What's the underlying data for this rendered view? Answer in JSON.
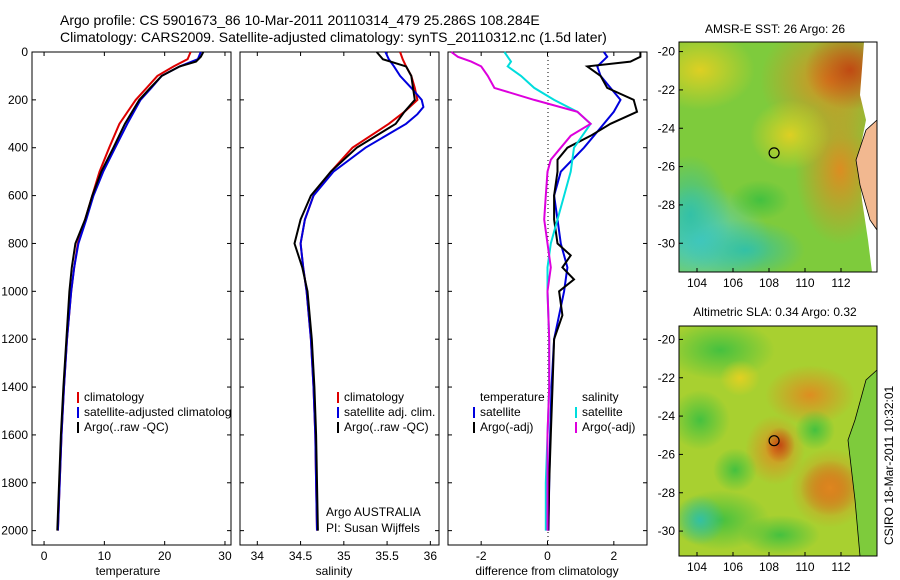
{
  "header": {
    "line1": "Argo profile: CS 5901673_86 10-Mar-2011 20110314_479 25.286S 108.284E",
    "line2": "Climatology: CARS2009. Satellite-adjusted climatology: synTS_20110312.nc (1.5d later)"
  },
  "side_stamp": "CSIRO 18-Mar-2011 10:32:01",
  "colors": {
    "climatology": "#dd0000",
    "satellite": "#0000dd",
    "argo": "#000000",
    "salinity_sat": "#00dddd",
    "salinity_argo": "#dd00dd"
  },
  "chart_data": [
    {
      "type": "line",
      "id": "temperature",
      "xlabel": "temperature",
      "ylabel": "",
      "xlim": [
        -2,
        31
      ],
      "ylim": [
        2060,
        0
      ],
      "xticks": [
        0,
        10,
        20,
        30
      ],
      "yticks": [
        0,
        200,
        400,
        600,
        800,
        1000,
        1200,
        1400,
        1600,
        1800,
        2000
      ],
      "legend": [
        "climatology",
        "satellite-adjusted climatolog",
        "Argo(..raw -QC)"
      ],
      "series": [
        {
          "name": "climatology",
          "color": "#dd0000",
          "y": [
            0,
            30,
            60,
            100,
            150,
            200,
            300,
            400,
            500,
            600,
            700,
            800,
            900,
            1000,
            1200,
            1400,
            1600,
            1800,
            2000
          ],
          "x": [
            24.3,
            23.8,
            21.5,
            18.8,
            17.0,
            15.2,
            12.5,
            10.8,
            9.2,
            8.0,
            6.8,
            5.6,
            5.0,
            4.5,
            3.8,
            3.3,
            2.9,
            2.6,
            2.3
          ]
        },
        {
          "name": "satellite-adjusted climatology",
          "color": "#0000dd",
          "y": [
            0,
            30,
            60,
            100,
            150,
            200,
            300,
            400,
            500,
            600,
            700,
            800,
            900,
            1000,
            1200,
            1400,
            1600,
            1800,
            2000
          ],
          "x": [
            26.0,
            25.5,
            22.5,
            19.5,
            17.8,
            16.0,
            13.8,
            11.8,
            9.8,
            8.2,
            7.0,
            5.7,
            5.0,
            4.5,
            3.8,
            3.3,
            2.9,
            2.6,
            2.3
          ]
        },
        {
          "name": "Argo(..raw -QC)",
          "color": "#000000",
          "y": [
            0,
            20,
            40,
            60,
            100,
            150,
            200,
            300,
            400,
            500,
            600,
            700,
            800,
            900,
            1000,
            1200,
            1400,
            1600,
            1800,
            2000
          ],
          "x": [
            26.4,
            26.0,
            25.2,
            22.5,
            19.5,
            17.6,
            15.8,
            13.4,
            11.5,
            9.5,
            8.0,
            6.8,
            5.2,
            4.6,
            4.2,
            3.7,
            3.2,
            2.8,
            2.5,
            2.2
          ]
        }
      ]
    },
    {
      "type": "line",
      "id": "salinity",
      "xlabel": "salinity",
      "ylabel": "",
      "xlim": [
        33.8,
        36.1
      ],
      "ylim": [
        2060,
        0
      ],
      "xticks": [
        34,
        34.5,
        35,
        35.5,
        36
      ],
      "legend": [
        "climatology",
        "satellite adj. clim.",
        "Argo(..raw -QC)"
      ],
      "annotation": [
        "Argo AUSTRALIA",
        "PI: Susan Wijffels"
      ],
      "series": [
        {
          "name": "climatology",
          "color": "#dd0000",
          "y": [
            0,
            30,
            60,
            100,
            150,
            200,
            250,
            300,
            400,
            500,
            600,
            700,
            800,
            900,
            1000,
            1200,
            1400,
            1600,
            1800,
            2000
          ],
          "x": [
            35.65,
            35.68,
            35.72,
            35.78,
            35.82,
            35.85,
            35.7,
            35.52,
            35.1,
            34.85,
            34.65,
            34.55,
            34.5,
            34.53,
            34.57,
            34.62,
            34.65,
            34.67,
            34.68,
            34.69
          ]
        },
        {
          "name": "satellite adj. clim.",
          "color": "#0000dd",
          "y": [
            0,
            30,
            60,
            100,
            150,
            200,
            230,
            260,
            300,
            400,
            500,
            600,
            700,
            800,
            900,
            1000,
            1200,
            1400,
            1600,
            1800,
            2000
          ],
          "x": [
            35.48,
            35.52,
            35.58,
            35.65,
            35.78,
            35.9,
            35.92,
            35.85,
            35.72,
            35.25,
            34.88,
            34.65,
            34.55,
            34.5,
            34.53,
            34.57,
            34.62,
            34.65,
            34.67,
            34.68,
            34.69
          ]
        },
        {
          "name": "Argo(..raw -QC)",
          "color": "#000000",
          "y": [
            0,
            30,
            60,
            100,
            150,
            200,
            250,
            300,
            400,
            500,
            600,
            700,
            800,
            900,
            1000,
            1200,
            1400,
            1600,
            1800,
            2000
          ],
          "x": [
            35.38,
            35.45,
            35.72,
            35.78,
            35.8,
            35.82,
            35.7,
            35.6,
            35.15,
            34.85,
            34.62,
            34.5,
            34.43,
            34.52,
            34.58,
            34.63,
            34.66,
            34.68,
            34.69,
            34.7
          ]
        }
      ]
    },
    {
      "type": "line",
      "id": "difference",
      "xlabel": "difference from climatology",
      "ylabel": "",
      "xlim": [
        -3,
        3
      ],
      "ylim": [
        2060,
        0
      ],
      "xticks": [
        -2,
        0,
        2
      ],
      "legend_left_title": "temperature",
      "legend_right_title": "salinity",
      "legend": [
        "satellite",
        "Argo(-adj)",
        "satellite",
        "Argo(-adj)"
      ],
      "series": [
        {
          "name": "temperature satellite",
          "color": "#0000dd",
          "y": [
            0,
            20,
            60,
            100,
            150,
            200,
            250,
            300,
            400,
            500,
            600,
            700,
            800,
            900,
            1000,
            1200,
            1400,
            1600,
            1800,
            2000
          ],
          "x": [
            1.7,
            1.8,
            1.5,
            1.6,
            1.9,
            2.2,
            2.0,
            1.7,
            1.1,
            0.4,
            0.2,
            0.3,
            0.4,
            0.6,
            0.5,
            0.2,
            0.12,
            0.08,
            0.05,
            0.03
          ]
        },
        {
          "name": "temperature Argo(-adj)",
          "color": "#000000",
          "y": [
            0,
            20,
            40,
            60,
            100,
            150,
            200,
            250,
            300,
            350,
            400,
            450,
            500,
            600,
            700,
            800,
            850,
            900,
            950,
            1000,
            1100,
            1200,
            1400,
            1600,
            1800,
            2000
          ],
          "x": [
            2.8,
            2.8,
            2.5,
            1.2,
            1.6,
            1.8,
            2.6,
            2.7,
            1.9,
            1.3,
            0.6,
            0.3,
            0.3,
            0.2,
            0.2,
            0.3,
            0.7,
            0.45,
            0.8,
            0.35,
            0.45,
            0.2,
            0.15,
            0.1,
            0.05,
            0.02
          ]
        },
        {
          "name": "salinity satellite",
          "color": "#00dddd",
          "y": [
            0,
            20,
            40,
            60,
            100,
            150,
            200,
            250,
            300,
            400,
            500,
            600,
            700,
            800,
            900,
            1000,
            1200,
            1400,
            1600,
            1800,
            2000
          ],
          "x": [
            -1.3,
            -1.2,
            -1.1,
            -1.2,
            -0.8,
            -0.4,
            0.2,
            0.9,
            1.3,
            0.8,
            0.7,
            0.5,
            0.3,
            0.1,
            0.0,
            0.0,
            0.05,
            0.05,
            0.0,
            -0.05,
            -0.05
          ]
        },
        {
          "name": "salinity Argo(-adj)",
          "color": "#dd00dd",
          "y": [
            0,
            20,
            40,
            60,
            100,
            150,
            200,
            250,
            300,
            350,
            400,
            450,
            500,
            600,
            700,
            800,
            900,
            1000,
            1200,
            1400,
            1600,
            1800,
            2000
          ],
          "x": [
            -2.9,
            -2.7,
            -2.3,
            -2.0,
            -1.8,
            -1.6,
            -0.4,
            0.9,
            1.3,
            0.7,
            0.4,
            0.1,
            0.0,
            -0.05,
            -0.1,
            0.0,
            0.1,
            0.0,
            0.05,
            0.05,
            0.0,
            0.0,
            0.0
          ]
        }
      ]
    },
    {
      "type": "heatmap",
      "id": "sst_map",
      "title": "AMSR-E SST: 26 Argo: 26",
      "xlim": [
        103,
        114
      ],
      "ylim": [
        -31.5,
        -19.5
      ],
      "xticks": [
        104,
        106,
        108,
        110,
        112
      ],
      "yticks": [
        -20,
        -22,
        -24,
        -26,
        -28,
        -30
      ],
      "marker": {
        "lon": 108.284,
        "lat": -25.286
      }
    },
    {
      "type": "heatmap",
      "id": "sla_map",
      "title": "Altimetric SLA: 0.34 Argo: 0.32",
      "xlim": [
        103,
        114
      ],
      "ylim": [
        -31.3,
        -19.3
      ],
      "xticks": [
        104,
        106,
        108,
        110,
        112
      ],
      "yticks": [
        -20,
        -22,
        -24,
        -26,
        -28,
        -30
      ],
      "marker": {
        "lon": 108.284,
        "lat": -25.286
      }
    }
  ]
}
